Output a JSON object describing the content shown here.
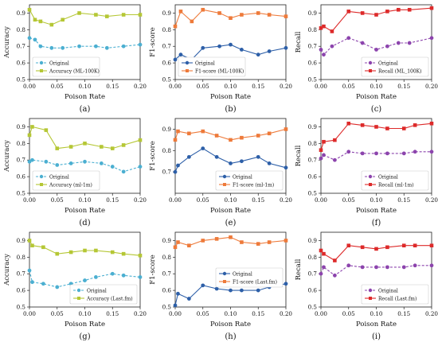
{
  "chart_data": [
    {
      "type": "line",
      "panel_label": "(a)",
      "xlabel": "Poison Rate",
      "ylabel": "Accuracy",
      "xlim": [
        0,
        0.2
      ],
      "ylim": [
        0.5,
        0.95
      ],
      "xticks": [
        "0.00",
        "0.05",
        "0.10",
        "0.15",
        "0.20"
      ],
      "yticks": [
        "0.5",
        "0.6",
        "0.7",
        "0.8",
        "0.9"
      ],
      "legend_position": "bottom-left",
      "series": [
        {
          "name": "Original",
          "color": "#4bafd1",
          "marker": "circle",
          "style": "dashed",
          "x": [
            0.0,
            0.01,
            0.02,
            0.04,
            0.06,
            0.09,
            0.12,
            0.14,
            0.17,
            0.2
          ],
          "y": [
            0.75,
            0.74,
            0.7,
            0.69,
            0.69,
            0.7,
            0.7,
            0.69,
            0.7,
            0.71
          ]
        },
        {
          "name": "Accuracy (ML-100K)",
          "color": "#b5c735",
          "marker": "square",
          "style": "solid",
          "x": [
            0.0,
            0.01,
            0.02,
            0.04,
            0.06,
            0.09,
            0.12,
            0.14,
            0.17,
            0.2
          ],
          "y": [
            0.92,
            0.86,
            0.85,
            0.83,
            0.86,
            0.9,
            0.89,
            0.88,
            0.89,
            0.89
          ]
        }
      ]
    },
    {
      "type": "line",
      "panel_label": "(b)",
      "xlabel": "Poison Rate",
      "ylabel": "F1-score",
      "xlim": [
        0,
        0.2
      ],
      "ylim": [
        0.5,
        0.95
      ],
      "xticks": [
        "0.00",
        "0.05",
        "0.10",
        "0.15",
        "0.20"
      ],
      "yticks": [
        "0.5",
        "0.6",
        "0.7",
        "0.8",
        "0.9"
      ],
      "legend_position": "bottom-left",
      "series": [
        {
          "name": "Original",
          "color": "#2d5fa8",
          "marker": "circle",
          "style": "solid",
          "x": [
            0.0,
            0.01,
            0.03,
            0.05,
            0.08,
            0.1,
            0.12,
            0.15,
            0.17,
            0.2
          ],
          "y": [
            0.62,
            0.65,
            0.62,
            0.69,
            0.7,
            0.71,
            0.68,
            0.65,
            0.67,
            0.69
          ]
        },
        {
          "name": "F1-score (ML-100K)",
          "color": "#ee7a3a",
          "marker": "square",
          "style": "solid",
          "x": [
            0.0,
            0.01,
            0.03,
            0.05,
            0.08,
            0.1,
            0.12,
            0.15,
            0.17,
            0.2
          ],
          "y": [
            0.82,
            0.91,
            0.85,
            0.92,
            0.9,
            0.87,
            0.89,
            0.9,
            0.89,
            0.88
          ]
        }
      ]
    },
    {
      "type": "line",
      "panel_label": "(c)",
      "xlabel": "Poison Rate",
      "ylabel": "Recall",
      "xlim": [
        0,
        0.2
      ],
      "ylim": [
        0.5,
        0.95
      ],
      "xticks": [
        "0.00",
        "0.05",
        "0.10",
        "0.15",
        "0.20"
      ],
      "yticks": [
        "0.5",
        "0.6",
        "0.7",
        "0.8",
        "0.9"
      ],
      "legend_position": "bottom-right",
      "series": [
        {
          "name": "Original",
          "color": "#8c44ad",
          "marker": "circle",
          "style": "dashed",
          "x": [
            0.0,
            0.005,
            0.02,
            0.05,
            0.075,
            0.1,
            0.12,
            0.14,
            0.16,
            0.2
          ],
          "y": [
            0.68,
            0.65,
            0.7,
            0.75,
            0.72,
            0.68,
            0.7,
            0.72,
            0.72,
            0.75
          ]
        },
        {
          "name": "Recall (ML_100K)",
          "color": "#dd2a2a",
          "marker": "square",
          "style": "solid",
          "x": [
            0.0,
            0.005,
            0.02,
            0.05,
            0.075,
            0.1,
            0.12,
            0.14,
            0.16,
            0.2
          ],
          "y": [
            0.81,
            0.82,
            0.79,
            0.91,
            0.9,
            0.89,
            0.91,
            0.92,
            0.92,
            0.93
          ]
        }
      ]
    },
    {
      "type": "line",
      "panel_label": "(d)",
      "xlabel": "Poison Rate",
      "ylabel": "Accuracy",
      "xlim": [
        0,
        0.2
      ],
      "ylim": [
        0.5,
        0.95
      ],
      "xticks": [
        "0.00",
        "0.05",
        "0.10",
        "0.15",
        "0.20"
      ],
      "yticks": [
        "0.5",
        "0.6",
        "0.7",
        "0.8",
        "0.9"
      ],
      "legend_position": "bottom-left",
      "series": [
        {
          "name": "Original",
          "color": "#4bafd1",
          "marker": "circle",
          "style": "dashed",
          "x": [
            0.0,
            0.005,
            0.03,
            0.05,
            0.075,
            0.1,
            0.13,
            0.15,
            0.17,
            0.2
          ],
          "y": [
            0.69,
            0.7,
            0.69,
            0.67,
            0.68,
            0.69,
            0.68,
            0.66,
            0.63,
            0.66
          ]
        },
        {
          "name": "Accuracy (ml-1m)",
          "color": "#b5c735",
          "marker": "square",
          "style": "solid",
          "x": [
            0.0,
            0.005,
            0.03,
            0.05,
            0.075,
            0.1,
            0.13,
            0.15,
            0.17,
            0.2
          ],
          "y": [
            0.85,
            0.9,
            0.88,
            0.77,
            0.78,
            0.8,
            0.78,
            0.77,
            0.79,
            0.82
          ]
        }
      ]
    },
    {
      "type": "line",
      "panel_label": "(e)",
      "xlabel": "Poison Rate",
      "ylabel": "F1-score",
      "xlim": [
        0,
        0.2
      ],
      "ylim": [
        0.6,
        0.95
      ],
      "xticks": [
        "0.00",
        "0.05",
        "0.10",
        "0.15",
        "0.20"
      ],
      "yticks": [
        "0.7",
        "0.8",
        "0.9"
      ],
      "legend_position": "bottom-right",
      "series": [
        {
          "name": "Original",
          "color": "#2d5fa8",
          "marker": "circle",
          "style": "solid",
          "x": [
            0.0,
            0.005,
            0.025,
            0.05,
            0.075,
            0.1,
            0.12,
            0.15,
            0.17,
            0.2
          ],
          "y": [
            0.7,
            0.73,
            0.77,
            0.81,
            0.77,
            0.74,
            0.75,
            0.77,
            0.74,
            0.72
          ]
        },
        {
          "name": "F1-score (ml-1m)",
          "color": "#ee7a3a",
          "marker": "square",
          "style": "solid",
          "x": [
            0.0,
            0.005,
            0.025,
            0.05,
            0.075,
            0.1,
            0.12,
            0.15,
            0.17,
            0.2
          ],
          "y": [
            0.85,
            0.89,
            0.88,
            0.89,
            0.87,
            0.85,
            0.86,
            0.87,
            0.88,
            0.9
          ]
        }
      ]
    },
    {
      "type": "line",
      "panel_label": "(f)",
      "xlabel": "Poison Rate",
      "ylabel": "Recall",
      "xlim": [
        0,
        0.2
      ],
      "ylim": [
        0.5,
        0.95
      ],
      "xticks": [
        "0.00",
        "0.05",
        "0.10",
        "0.15",
        "0.20"
      ],
      "yticks": [
        "0.5",
        "0.6",
        "0.7",
        "0.8",
        "0.9"
      ],
      "legend_position": "bottom-right",
      "series": [
        {
          "name": "Original",
          "color": "#8c44ad",
          "marker": "circle",
          "style": "dashed",
          "x": [
            0.0,
            0.005,
            0.025,
            0.05,
            0.075,
            0.1,
            0.12,
            0.15,
            0.17,
            0.2
          ],
          "y": [
            0.71,
            0.73,
            0.7,
            0.75,
            0.74,
            0.74,
            0.74,
            0.74,
            0.75,
            0.75
          ]
        },
        {
          "name": "Recall (ml-1m)",
          "color": "#dd2a2a",
          "marker": "square",
          "style": "solid",
          "x": [
            0.0,
            0.005,
            0.025,
            0.05,
            0.075,
            0.1,
            0.12,
            0.15,
            0.17,
            0.2
          ],
          "y": [
            0.76,
            0.81,
            0.82,
            0.92,
            0.91,
            0.9,
            0.89,
            0.89,
            0.91,
            0.92
          ]
        }
      ]
    },
    {
      "type": "line",
      "panel_label": "(g)",
      "xlabel": "Poison Rate",
      "ylabel": "Accuracy",
      "xlim": [
        0,
        0.2
      ],
      "ylim": [
        0.5,
        0.95
      ],
      "xticks": [
        "0.00",
        "0.05",
        "0.10",
        "0.15",
        "0.20"
      ],
      "yticks": [
        "0.5",
        "0.6",
        "0.7",
        "0.8",
        "0.9"
      ],
      "legend_position": "bottom-right",
      "series": [
        {
          "name": "Original",
          "color": "#4bafd1",
          "marker": "circle",
          "style": "dashed",
          "x": [
            0.0,
            0.005,
            0.025,
            0.05,
            0.075,
            0.1,
            0.12,
            0.15,
            0.17,
            0.2
          ],
          "y": [
            0.72,
            0.65,
            0.64,
            0.62,
            0.64,
            0.66,
            0.68,
            0.7,
            0.69,
            0.68
          ]
        },
        {
          "name": "Accuracy (Last.fm)",
          "color": "#b5c735",
          "marker": "square",
          "style": "solid",
          "x": [
            0.0,
            0.005,
            0.025,
            0.05,
            0.075,
            0.1,
            0.12,
            0.15,
            0.17,
            0.2
          ],
          "y": [
            0.9,
            0.87,
            0.86,
            0.82,
            0.83,
            0.84,
            0.84,
            0.83,
            0.82,
            0.81
          ]
        }
      ]
    },
    {
      "type": "line",
      "panel_label": "(h)",
      "xlabel": "Poison Rate",
      "ylabel": "F1-score",
      "xlim": [
        0,
        0.2
      ],
      "ylim": [
        0.5,
        0.95
      ],
      "xticks": [
        "0.00",
        "0.05",
        "0.10",
        "0.15",
        "0.20"
      ],
      "yticks": [
        "0.5",
        "0.6",
        "0.7",
        "0.8",
        "0.9"
      ],
      "legend_position": "center-right",
      "series": [
        {
          "name": "Original",
          "color": "#2d5fa8",
          "marker": "circle",
          "style": "solid",
          "x": [
            0.0,
            0.005,
            0.025,
            0.05,
            0.075,
            0.1,
            0.12,
            0.15,
            0.17,
            0.2
          ],
          "y": [
            0.51,
            0.58,
            0.55,
            0.63,
            0.61,
            0.6,
            0.6,
            0.6,
            0.62,
            0.64
          ]
        },
        {
          "name": "F1-score (Last.fm)",
          "color": "#ee7a3a",
          "marker": "square",
          "style": "solid",
          "x": [
            0.0,
            0.005,
            0.025,
            0.05,
            0.075,
            0.1,
            0.12,
            0.15,
            0.17,
            0.2
          ],
          "y": [
            0.86,
            0.89,
            0.87,
            0.9,
            0.91,
            0.92,
            0.89,
            0.88,
            0.89,
            0.9
          ]
        }
      ]
    },
    {
      "type": "line",
      "panel_label": "(i)",
      "xlabel": "Poison Rate",
      "ylabel": "Recall",
      "xlim": [
        0,
        0.2
      ],
      "ylim": [
        0.5,
        0.95
      ],
      "xticks": [
        "0.00",
        "0.05",
        "0.10",
        "0.15",
        "0.20"
      ],
      "yticks": [
        "0.5",
        "0.6",
        "0.7",
        "0.8",
        "0.9"
      ],
      "legend_position": "bottom-right",
      "series": [
        {
          "name": "Original",
          "color": "#8c44ad",
          "marker": "circle",
          "style": "dashed",
          "x": [
            0.0,
            0.005,
            0.025,
            0.05,
            0.075,
            0.1,
            0.12,
            0.15,
            0.17,
            0.2
          ],
          "y": [
            0.7,
            0.74,
            0.69,
            0.75,
            0.74,
            0.74,
            0.74,
            0.74,
            0.75,
            0.75
          ]
        },
        {
          "name": "Recall (Last.fm)",
          "color": "#dd2a2a",
          "marker": "square",
          "style": "solid",
          "x": [
            0.0,
            0.005,
            0.025,
            0.05,
            0.075,
            0.1,
            0.12,
            0.15,
            0.17,
            0.2
          ],
          "y": [
            0.84,
            0.82,
            0.78,
            0.87,
            0.86,
            0.85,
            0.86,
            0.87,
            0.87,
            0.87
          ]
        }
      ]
    }
  ]
}
